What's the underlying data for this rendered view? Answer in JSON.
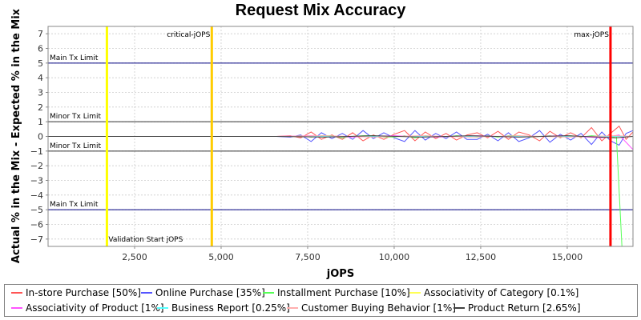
{
  "chart_data": {
    "type": "line",
    "title": "Request Mix Accuracy",
    "xlabel": "jOPS",
    "ylabel": "Actual % in the Mix - Expected % in the Mix",
    "xlim": [
      0,
      16900
    ],
    "ylim": [
      -7.5,
      7.5
    ],
    "x_ticks": [
      2500,
      5000,
      7500,
      10000,
      12500,
      15000
    ],
    "x_tick_labels": [
      "2,500",
      "5,000",
      "7,500",
      "10,000",
      "12,500",
      "15,000"
    ],
    "y_ticks": [
      -7,
      -6,
      -5,
      -4,
      -3,
      -2,
      -1,
      0,
      1,
      2,
      3,
      4,
      5,
      6,
      7
    ],
    "y_tick_labels": [
      "−7",
      "−6",
      "−5",
      "−4",
      "−3",
      "−2",
      "−1",
      "0",
      "1",
      "2",
      "3",
      "4",
      "5",
      "6",
      "7"
    ],
    "grid": true,
    "legend_position": "bottom",
    "horizontal_lines": [
      {
        "label": "Main Tx Limit",
        "y": 5,
        "color": "#000080"
      },
      {
        "label": "Minor Tx Limit",
        "y": 1,
        "color": "#333333"
      },
      {
        "label": "Minor Tx Limit",
        "y": -1,
        "color": "#333333"
      },
      {
        "label": "Main Tx Limit",
        "y": -5,
        "color": "#000080"
      }
    ],
    "vertical_markers": [
      {
        "label": "Validation Start jOPS",
        "x": 1700,
        "color": "#ffff00"
      },
      {
        "label": "critical-jOPS",
        "x": 4730,
        "color": "#ffcc00"
      },
      {
        "label": "max-jOPS",
        "x": 16250,
        "color": "#ff0000"
      }
    ],
    "series": [
      {
        "name": "In-store Purchase [50%]",
        "color": "#ff5555",
        "x": [
          0,
          1700,
          6600,
          7000,
          7300,
          7600,
          7900,
          8200,
          8500,
          8800,
          9100,
          9400,
          9700,
          10000,
          10300,
          10600,
          10900,
          11200,
          11500,
          11800,
          12100,
          12400,
          12700,
          13000,
          13300,
          13600,
          13900,
          14200,
          14500,
          14800,
          15100,
          15400,
          15700,
          16000,
          16250,
          16500,
          16700,
          16900
        ],
        "values": [
          0,
          0,
          0,
          0.05,
          -0.1,
          0.3,
          -0.2,
          0.1,
          -0.2,
          0.25,
          -0.3,
          0.1,
          -0.2,
          0.15,
          0.4,
          -0.3,
          0.3,
          -0.15,
          0.2,
          -0.25,
          0.1,
          0.25,
          -0.1,
          0.35,
          -0.2,
          0.3,
          0.1,
          -0.3,
          0.35,
          -0.1,
          0.25,
          -0.1,
          0.6,
          -0.3,
          0.2,
          0.7,
          -0.2,
          0.3
        ]
      },
      {
        "name": "Online Purchase [35%]",
        "color": "#5555ff",
        "x": [
          0,
          1700,
          6600,
          7000,
          7300,
          7600,
          7900,
          8200,
          8500,
          8800,
          9100,
          9400,
          9700,
          10000,
          10300,
          10600,
          10900,
          11200,
          11500,
          11800,
          12100,
          12400,
          12700,
          13000,
          13300,
          13600,
          13900,
          14200,
          14500,
          14800,
          15100,
          15400,
          15700,
          16000,
          16250,
          16500,
          16700,
          16900
        ],
        "values": [
          0,
          0,
          0,
          -0.05,
          0.1,
          -0.35,
          0.25,
          -0.15,
          0.2,
          -0.2,
          0.4,
          -0.15,
          0.25,
          -0.1,
          -0.35,
          0.4,
          -0.25,
          0.2,
          -0.15,
          0.3,
          -0.2,
          -0.2,
          0.15,
          -0.3,
          0.25,
          -0.35,
          -0.1,
          0.4,
          -0.4,
          0.15,
          -0.25,
          0.2,
          -0.55,
          0.3,
          -0.3,
          -0.6,
          0.2,
          0.4
        ]
      },
      {
        "name": "Installment Purchase [10%]",
        "color": "#55ff55",
        "x": [
          0,
          1700,
          6600,
          7000,
          7300,
          7600,
          7900,
          8200,
          8500,
          8800,
          9100,
          9400,
          9700,
          10000,
          10300,
          10600,
          10900,
          11200,
          11500,
          11800,
          12100,
          12400,
          12700,
          13000,
          13300,
          13600,
          13900,
          14200,
          14500,
          14800,
          15100,
          15400,
          15700,
          16000,
          16250,
          16420,
          16580
        ],
        "values": [
          0,
          0,
          0,
          0.0,
          0.05,
          -0.05,
          0.05,
          0.05,
          -0.1,
          0.0,
          0.05,
          0.05,
          -0.05,
          -0.05,
          0.05,
          -0.1,
          0.05,
          0.0,
          -0.05,
          0.05,
          0.0,
          -0.05,
          0.05,
          -0.05,
          0.05,
          0.05,
          -0.05,
          0.0,
          0.05,
          -0.05,
          0.05,
          -0.05,
          0.05,
          0.0,
          -0.1,
          0.0,
          -7.5
        ]
      },
      {
        "name": "Associativity of Category [0.1%]",
        "color": "#ffff55",
        "x": [
          0,
          16900
        ],
        "values": [
          0,
          0
        ]
      },
      {
        "name": "Associativity of Product [1%]",
        "color": "#ff55ff",
        "x": [
          0,
          1700,
          6600,
          7600,
          8800,
          10000,
          11200,
          12400,
          13600,
          14800,
          16000,
          16500,
          16900
        ],
        "values": [
          0,
          0,
          0,
          0.05,
          -0.05,
          0.05,
          -0.05,
          0.05,
          -0.05,
          0.05,
          -0.1,
          0.1,
          -0.9
        ]
      },
      {
        "name": "Business Report [0.25%]",
        "color": "#55ffff",
        "x": [
          0,
          16900
        ],
        "values": [
          0,
          0
        ]
      },
      {
        "name": "Customer Buying Behavior [1%]",
        "color": "#ffafaf",
        "x": [
          0,
          1700,
          6600,
          8000,
          9400,
          10800,
          12200,
          13600,
          15000,
          16400,
          16900
        ],
        "values": [
          0,
          0,
          0,
          0.05,
          -0.05,
          0.05,
          -0.05,
          0.05,
          -0.05,
          0.05,
          0.0
        ]
      },
      {
        "name": "Product Return [2.65%]",
        "color": "#404040",
        "x": [
          0,
          1700,
          6600,
          8000,
          9400,
          10800,
          12200,
          13600,
          15000,
          16400,
          16900
        ],
        "values": [
          0,
          0,
          0,
          -0.05,
          0.05,
          -0.05,
          0.05,
          -0.05,
          0.05,
          -0.1,
          0.0
        ]
      }
    ]
  },
  "legend": [
    {
      "label": "In-store Purchase [50%]",
      "color": "#ff5555"
    },
    {
      "label": "Online Purchase [35%]",
      "color": "#5555ff"
    },
    {
      "label": "Installment Purchase [10%]",
      "color": "#55ff55"
    },
    {
      "label": "Associativity of Category [0.1%]",
      "color": "#ffff55"
    },
    {
      "label": "Associativity of Product [1%]",
      "color": "#ff55ff"
    },
    {
      "label": "Business Report [0.25%]",
      "color": "#55ffff"
    },
    {
      "label": "Customer Buying Behavior [1%]",
      "color": "#ffafaf"
    },
    {
      "label": "Product Return [2.65%]",
      "color": "#404040"
    }
  ]
}
